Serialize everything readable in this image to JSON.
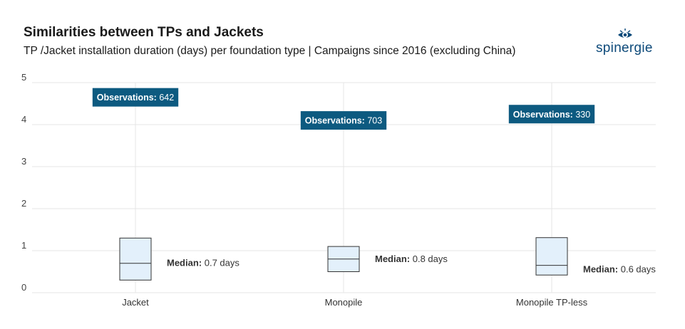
{
  "title": "Similarities between TPs and Jackets",
  "subtitle": "TP /Jacket installation duration (days) per foundation type | Campaigns since 2016 (excluding China)",
  "logo": {
    "text": "spinergie",
    "icon": "eye-icon",
    "color": "#0d4a7a"
  },
  "colors": {
    "label_bg": "#0d5a80",
    "box_fill": "#e3f0fb",
    "box_stroke": "#333333",
    "grid": "#e6e6e6"
  },
  "chart_data": {
    "type": "box",
    "categories": [
      "Jacket",
      "Monopile",
      "Monopile TP-less"
    ],
    "ylim": [
      0,
      5
    ],
    "yticks": [
      "0",
      "1",
      "2",
      "3",
      "4",
      "5"
    ],
    "boxes": [
      {
        "q1": 0.3,
        "median": 0.7,
        "q3": 1.3,
        "observations_label": "Observations:",
        "observations": "642",
        "median_label": "Median:",
        "median_text": "0.7 days",
        "obs_y": 4.65
      },
      {
        "q1": 0.5,
        "median": 0.8,
        "q3": 1.1,
        "observations_label": "Observations:",
        "observations": "703",
        "median_label": "Median:",
        "median_text": "0.8 days",
        "obs_y": 4.1
      },
      {
        "q1": 0.42,
        "median": 0.65,
        "q3": 1.31,
        "observations_label": "Observations:",
        "observations": "330",
        "median_label": "Median:",
        "median_text": "0.6 days",
        "obs_y": 4.25
      }
    ],
    "grid": true,
    "legend": "none"
  }
}
